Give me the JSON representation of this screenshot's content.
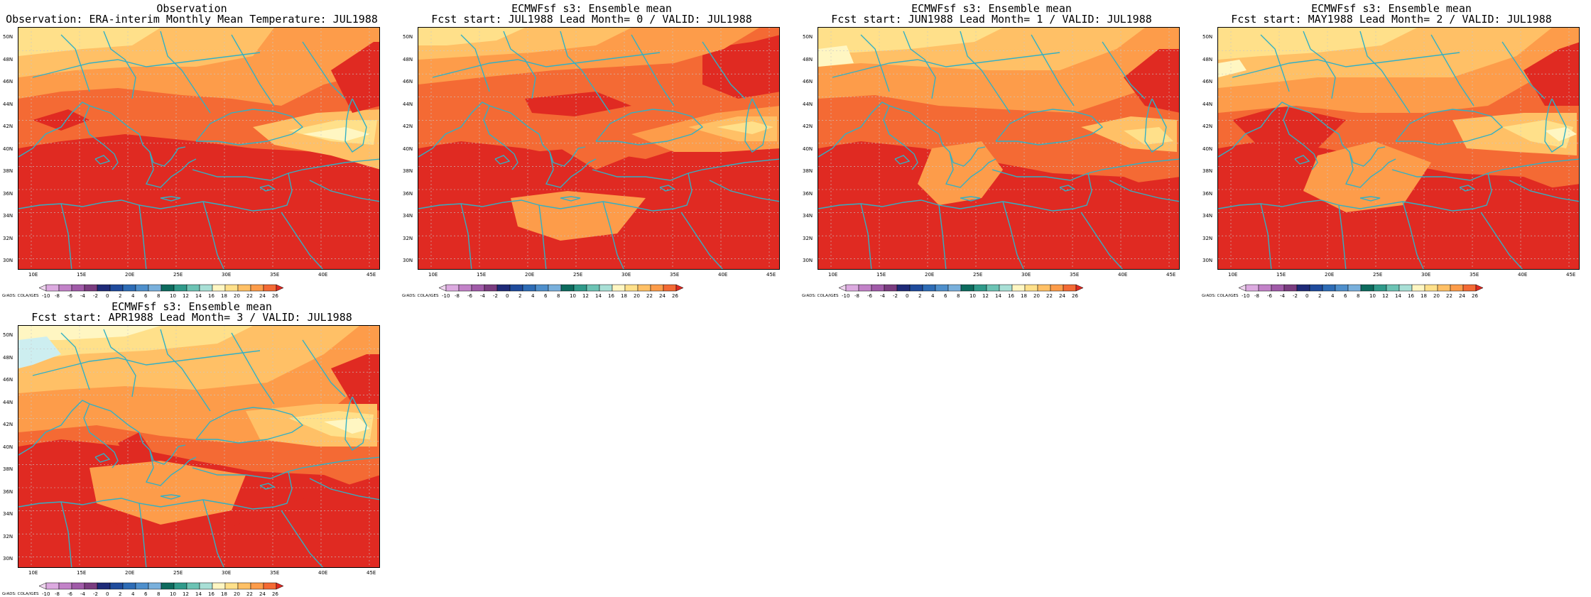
{
  "panels": [
    {
      "title1": "Observation",
      "title2": "Observation: ERA-interim Monthly Mean Temperature: JUL1988",
      "variant": 0
    },
    {
      "title1": "ECMWFsf s3: Ensemble mean",
      "title2": "Fcst start: JUL1988  Lead Month= 0 / VALID: JUL1988",
      "variant": 1
    },
    {
      "title1": "ECMWFsf s3: Ensemble mean",
      "title2": "Fcst start: JUN1988  Lead Month= 1 / VALID: JUL1988",
      "variant": 2
    },
    {
      "title1": "ECMWFsf s3: Ensemble mean",
      "title2": "Fcst start: MAY1988  Lead Month= 2 / VALID: JUL1988",
      "variant": 3
    },
    {
      "title1": "ECMWFsf s3: Ensemble mean",
      "title2": "Fcst start: APR1988  Lead Month= 3 / VALID: JUL1988",
      "variant": 4
    }
  ],
  "lat_labels": [
    "50N",
    "48N",
    "46N",
    "44N",
    "42N",
    "40N",
    "38N",
    "36N",
    "34N",
    "32N",
    "30N"
  ],
  "lon_labels": [
    "10E",
    "15E",
    "20E",
    "25E",
    "30E",
    "35E",
    "40E",
    "45E"
  ],
  "colorbar": {
    "ticks": [
      "-10",
      "-8",
      "-6",
      "-4",
      "-2",
      "0",
      "2",
      "4",
      "6",
      "8",
      "10",
      "12",
      "14",
      "16",
      "18",
      "20",
      "22",
      "24",
      "26"
    ],
    "colors": [
      "#f0d6f0",
      "#dcaae0",
      "#c282c8",
      "#a05aa8",
      "#7a3c80",
      "#1e2a78",
      "#1f4b9c",
      "#2d6cb6",
      "#4e8fcc",
      "#79b0dc",
      "#0d6b5e",
      "#2f9a8a",
      "#6cc3b4",
      "#a8dfd6",
      "#fff6c2",
      "#ffe08a",
      "#ffc066",
      "#fd9c4a",
      "#f46a34",
      "#e02a22"
    ],
    "credit": "GrADS: COLA/IGES"
  },
  "colors": {
    "coast": "#33b0c4",
    "frame": "#000000",
    "c18": "#fff6c2",
    "c20": "#ffe08a",
    "c22": "#ffc066",
    "c24": "#fd9c4a",
    "c26": "#f46a34",
    "c28": "#e02a22",
    "cold": "#cdeef0"
  }
}
